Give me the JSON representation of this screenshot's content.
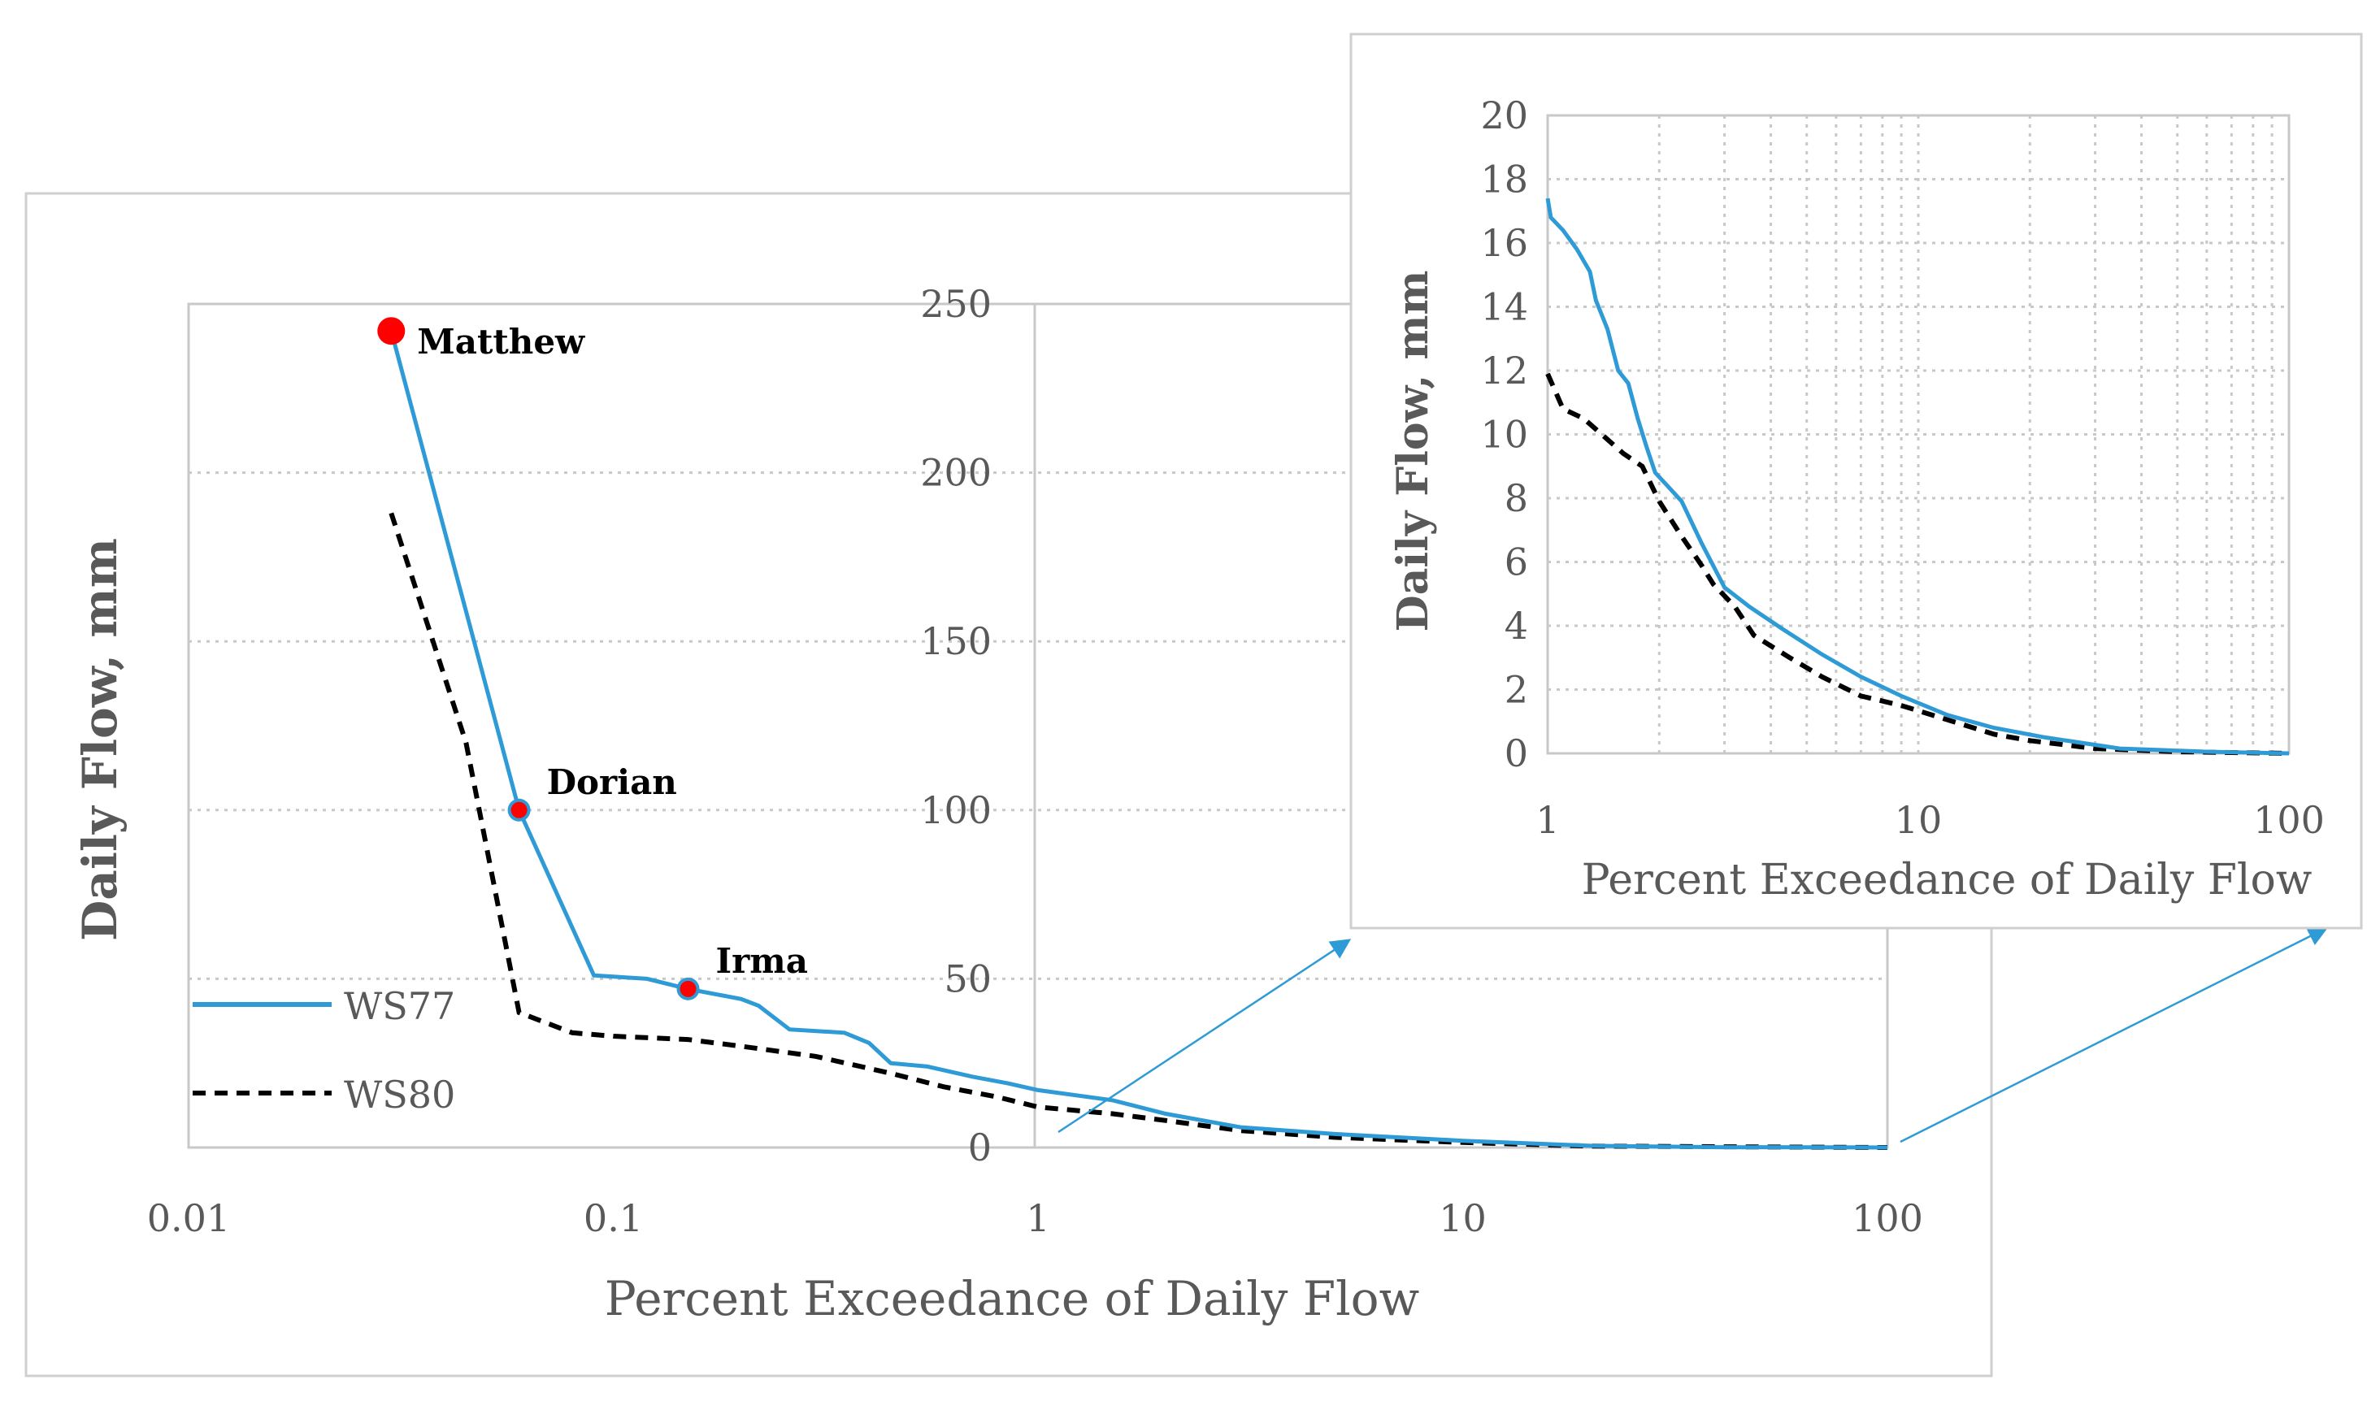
{
  "colors": {
    "ws77": "#2e9bd6",
    "ws80": "#000000",
    "marker": "#ff0000",
    "axis_text": "#595959",
    "grid": "#c8c8c8",
    "frame": "#cfcfcf",
    "callout": "#2e9bd6"
  },
  "chart_data": [
    {
      "id": "main",
      "type": "line",
      "title": "",
      "xlabel": "Percent Exceedance of Daily Flow",
      "ylabel": "Daily Flow, mm",
      "xscale": "log",
      "xlim": [
        0.01,
        100
      ],
      "ylim": [
        0,
        250
      ],
      "xticks": [
        0.01,
        0.1,
        1,
        10,
        100
      ],
      "xtick_labels": [
        "0.01",
        "0.1",
        "1",
        "10",
        "100"
      ],
      "yticks": [
        0,
        50,
        100,
        150,
        200,
        250
      ],
      "ytick_labels": [
        "0",
        "50",
        "100",
        "150",
        "200",
        "250"
      ],
      "grid": "horizontal dotted",
      "legend_position": "left",
      "series": [
        {
          "name": "WS77",
          "style": "solid",
          "points": [
            [
              0.03,
              242
            ],
            [
              0.06,
              100
            ],
            [
              0.09,
              51
            ],
            [
              0.12,
              50
            ],
            [
              0.15,
              47
            ],
            [
              0.2,
              44
            ],
            [
              0.22,
              42
            ],
            [
              0.26,
              35
            ],
            [
              0.35,
              34
            ],
            [
              0.4,
              31
            ],
            [
              0.45,
              25
            ],
            [
              0.55,
              24
            ],
            [
              0.7,
              21
            ],
            [
              0.85,
              19
            ],
            [
              1,
              17
            ],
            [
              1.5,
              14
            ],
            [
              2,
              10
            ],
            [
              3,
              6
            ],
            [
              5,
              4
            ],
            [
              10,
              2
            ],
            [
              20,
              0.5
            ],
            [
              40,
              0.1
            ],
            [
              100,
              0
            ]
          ]
        },
        {
          "name": "WS80",
          "style": "dashed",
          "points": [
            [
              0.03,
              188
            ],
            [
              0.045,
              120
            ],
            [
              0.06,
              40
            ],
            [
              0.08,
              34
            ],
            [
              0.1,
              33
            ],
            [
              0.15,
              32
            ],
            [
              0.2,
              30
            ],
            [
              0.3,
              27
            ],
            [
              0.45,
              22
            ],
            [
              0.6,
              18
            ],
            [
              0.8,
              15
            ],
            [
              1,
              12
            ],
            [
              1.5,
              10
            ],
            [
              2,
              8
            ],
            [
              3,
              5
            ],
            [
              5,
              3
            ],
            [
              10,
              1.5
            ],
            [
              20,
              0.4
            ],
            [
              100,
              0
            ]
          ]
        }
      ],
      "annotations": [
        {
          "label": "Matthew",
          "x": 0.03,
          "y": 242
        },
        {
          "label": "Dorian",
          "x": 0.06,
          "y": 100
        },
        {
          "label": "Irma",
          "x": 0.15,
          "y": 47
        }
      ]
    },
    {
      "id": "inset",
      "type": "line",
      "title": "",
      "xlabel": "Percent Exceedance of Daily Flow",
      "ylabel": "Daily Flow, mm",
      "xscale": "log",
      "xlim": [
        1,
        100
      ],
      "ylim": [
        0,
        20
      ],
      "xticks": [
        1,
        10,
        100
      ],
      "xtick_labels": [
        "1",
        "10",
        "100"
      ],
      "yticks": [
        0,
        2,
        4,
        6,
        8,
        10,
        12,
        14,
        16,
        18,
        20
      ],
      "ytick_labels": [
        "0",
        "2",
        "4",
        "6",
        "8",
        "10",
        "12",
        "14",
        "16",
        "18",
        "20"
      ],
      "grid": "dotted",
      "series": [
        {
          "name": "WS77",
          "style": "solid",
          "points": [
            [
              1,
              17.4
            ],
            [
              1.02,
              16.8
            ],
            [
              1.1,
              16.4
            ],
            [
              1.2,
              15.8
            ],
            [
              1.3,
              15.1
            ],
            [
              1.35,
              14.2
            ],
            [
              1.45,
              13.3
            ],
            [
              1.55,
              12
            ],
            [
              1.65,
              11.6
            ],
            [
              1.75,
              10.5
            ],
            [
              1.85,
              9.6
            ],
            [
              1.95,
              8.8
            ],
            [
              2.1,
              8.4
            ],
            [
              2.3,
              7.9
            ],
            [
              2.6,
              6.6
            ],
            [
              3,
              5.2
            ],
            [
              3.5,
              4.6
            ],
            [
              4.3,
              3.9
            ],
            [
              5.5,
              3.1
            ],
            [
              7,
              2.4
            ],
            [
              9,
              1.8
            ],
            [
              12,
              1.2
            ],
            [
              16,
              0.8
            ],
            [
              22,
              0.5
            ],
            [
              35,
              0.15
            ],
            [
              60,
              0.05
            ],
            [
              100,
              0
            ]
          ]
        },
        {
          "name": "WS80",
          "style": "dashed",
          "points": [
            [
              1,
              11.9
            ],
            [
              1.1,
              10.8
            ],
            [
              1.25,
              10.5
            ],
            [
              1.4,
              10
            ],
            [
              1.6,
              9.4
            ],
            [
              1.8,
              9
            ],
            [
              2,
              7.9
            ],
            [
              2.3,
              6.8
            ],
            [
              2.6,
              5.9
            ],
            [
              2.8,
              5.3
            ],
            [
              3.2,
              4.6
            ],
            [
              3.6,
              3.7
            ],
            [
              4.5,
              3
            ],
            [
              5.5,
              2.4
            ],
            [
              7,
              1.8
            ],
            [
              9,
              1.5
            ],
            [
              12,
              1.05
            ],
            [
              16,
              0.6
            ],
            [
              20,
              0.4
            ],
            [
              30,
              0.15
            ],
            [
              50,
              0.05
            ],
            [
              100,
              0
            ]
          ]
        }
      ]
    }
  ]
}
